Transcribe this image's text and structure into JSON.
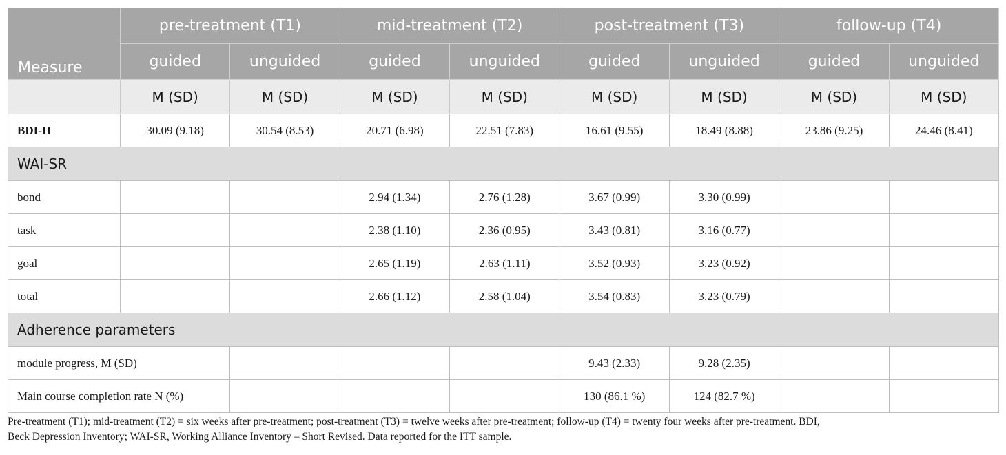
{
  "header": {
    "measure": "Measure",
    "timepoints": [
      "pre-treatment (T1)",
      "mid-treatment (T2)",
      "post-treatment (T3)",
      "follow-up (T4)"
    ],
    "groups": [
      "guided",
      "unguided",
      "guided",
      "unguided",
      "guided",
      "unguided",
      "guided",
      "unguided"
    ],
    "stats": [
      "M (SD)",
      "M (SD)",
      "M (SD)",
      "M (SD)",
      "M (SD)",
      "M (SD)",
      "M (SD)",
      "M (SD)"
    ]
  },
  "rows": {
    "bdi": {
      "label": "BDI-II",
      "values": [
        "30.09 (9.18)",
        "30.54 (8.53)",
        "20.71 (6.98)",
        "22.51 (7.83)",
        "16.61 (9.55)",
        "18.49 (8.88)",
        "23.86 (9.25)",
        "24.46 (8.41)"
      ]
    },
    "wai_section": "WAI-SR",
    "bond": {
      "label": "bond",
      "values": [
        "",
        "",
        "2.94 (1.34)",
        "2.76 (1.28)",
        "3.67 (0.99)",
        "3.30 (0.99)",
        "",
        ""
      ]
    },
    "task": {
      "label": "task",
      "values": [
        "",
        "",
        "2.38 (1.10)",
        "2.36 (0.95)",
        "3.43 (0.81)",
        "3.16 (0.77)",
        "",
        ""
      ]
    },
    "goal": {
      "label": "goal",
      "values": [
        "",
        "",
        "2.65 (1.19)",
        "2.63 (1.11)",
        "3.52 (0.93)",
        "3.23 (0.92)",
        "",
        ""
      ]
    },
    "total": {
      "label": "total",
      "values": [
        "",
        "",
        "2.66 (1.12)",
        "2.58 (1.04)",
        "3.54 (0.83)",
        "3.23 (0.79)",
        "",
        ""
      ]
    },
    "adherence_section": "Adherence parameters",
    "module": {
      "label": "module progress, M (SD)",
      "values": [
        "",
        "",
        "",
        "",
        "9.43 (2.33)",
        "9.28 (2.35)",
        "",
        ""
      ]
    },
    "completion": {
      "label": "Main course completion rate N (%)",
      "values": [
        "",
        "",
        "",
        "",
        "130 (86.1 %)",
        "124 (82.7 %)",
        "",
        ""
      ]
    }
  },
  "footnote": {
    "line1": "Pre-treatment (T1); mid-treatment (T2) = six weeks after pre-treatment; post-treatment (T3) = twelve weeks after pre-treatment; follow-up (T4) = twenty four weeks after pre-treatment. BDI,",
    "line2": "Beck Depression Inventory; WAI-SR, Working Alliance Inventory – Short Revised. Data reported for the ITT sample."
  }
}
